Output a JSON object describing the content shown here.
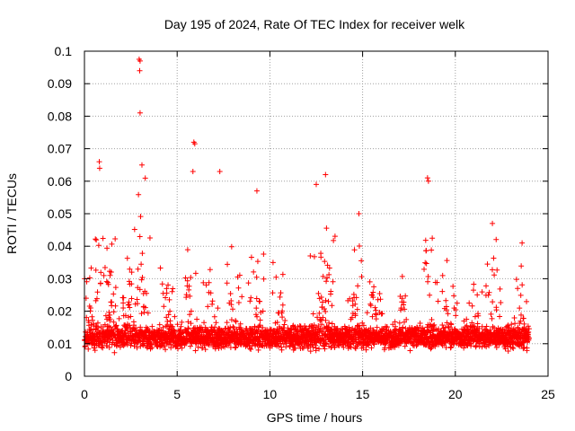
{
  "chart_data": {
    "type": "scatter",
    "title": "Day 195 of 2024, Rate Of TEC Index for receiver welk",
    "xlabel": "GPS time / hours",
    "ylabel": "ROTI / TECUs",
    "xlim": [
      0,
      25
    ],
    "ylim": [
      0,
      0.1
    ],
    "x_ticks": [
      0,
      5,
      10,
      15,
      20,
      25
    ],
    "x_tick_labels": [
      "0",
      "5",
      "10",
      "15",
      "20",
      "25"
    ],
    "y_ticks": [
      0,
      0.01,
      0.02,
      0.03,
      0.04,
      0.05,
      0.06,
      0.07,
      0.08,
      0.09,
      0.1
    ],
    "y_tick_labels": [
      "0",
      "0.01",
      "0.02",
      "0.03",
      "0.04",
      "0.05",
      "0.06",
      "0.07",
      "0.08",
      "0.09",
      "0.1"
    ],
    "grid": true,
    "marker": "+",
    "marker_color": "#ff0000",
    "series": [
      {
        "name": "ROTI",
        "x_range_hours": [
          0,
          23.98
        ],
        "baseline_roti": 0.011,
        "notable_points": [
          {
            "x": 2.95,
            "y": 0.0975
          },
          {
            "x": 3.0,
            "y": 0.097
          },
          {
            "x": 2.98,
            "y": 0.094
          },
          {
            "x": 3.0,
            "y": 0.081
          },
          {
            "x": 5.9,
            "y": 0.072
          },
          {
            "x": 5.95,
            "y": 0.0715
          },
          {
            "x": 5.85,
            "y": 0.063
          },
          {
            "x": 7.3,
            "y": 0.063
          },
          {
            "x": 0.8,
            "y": 0.066
          },
          {
            "x": 0.82,
            "y": 0.064
          },
          {
            "x": 3.1,
            "y": 0.065
          },
          {
            "x": 13.0,
            "y": 0.062
          },
          {
            "x": 18.5,
            "y": 0.061
          },
          {
            "x": 18.55,
            "y": 0.06
          },
          {
            "x": 22.0,
            "y": 0.047
          },
          {
            "x": 23.6,
            "y": 0.041
          },
          {
            "x": 14.8,
            "y": 0.05
          },
          {
            "x": 9.3,
            "y": 0.057
          },
          {
            "x": 12.5,
            "y": 0.059
          }
        ],
        "activity_bursts": [
          {
            "center_x": 0.1,
            "peak_y": 0.036
          },
          {
            "center_x": 0.75,
            "peak_y": 0.058
          },
          {
            "center_x": 1.4,
            "peak_y": 0.05
          },
          {
            "center_x": 2.3,
            "peak_y": 0.04
          },
          {
            "center_x": 3.0,
            "peak_y": 0.065
          },
          {
            "center_x": 4.4,
            "peak_y": 0.035
          },
          {
            "center_x": 5.7,
            "peak_y": 0.045
          },
          {
            "center_x": 6.8,
            "peak_y": 0.04
          },
          {
            "center_x": 8.1,
            "peak_y": 0.045
          },
          {
            "center_x": 9.3,
            "peak_y": 0.055
          },
          {
            "center_x": 10.6,
            "peak_y": 0.04
          },
          {
            "center_x": 12.6,
            "peak_y": 0.05
          },
          {
            "center_x": 13.2,
            "peak_y": 0.058
          },
          {
            "center_x": 14.6,
            "peak_y": 0.048
          },
          {
            "center_x": 15.7,
            "peak_y": 0.04
          },
          {
            "center_x": 17.2,
            "peak_y": 0.035
          },
          {
            "center_x": 18.6,
            "peak_y": 0.058
          },
          {
            "center_x": 19.7,
            "peak_y": 0.04
          },
          {
            "center_x": 21.0,
            "peak_y": 0.035
          },
          {
            "center_x": 22.0,
            "peak_y": 0.046
          },
          {
            "center_x": 23.5,
            "peak_y": 0.035
          }
        ]
      }
    ]
  }
}
